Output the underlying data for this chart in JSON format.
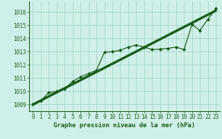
{
  "title": "Graphe pression niveau de la mer (hPa)",
  "bg_color": "#cff0e8",
  "grid_color": "#a8d8cc",
  "line_color": "#1a5c1a",
  "marker_color": "#1a5c1a",
  "xlim": [
    -0.5,
    23.5
  ],
  "ylim": [
    1008.5,
    1016.8
  ],
  "yticks": [
    1009,
    1010,
    1011,
    1012,
    1013,
    1014,
    1015,
    1016
  ],
  "xticks": [
    0,
    1,
    2,
    3,
    4,
    5,
    6,
    7,
    8,
    9,
    10,
    11,
    12,
    13,
    14,
    15,
    16,
    17,
    18,
    19,
    20,
    21,
    22,
    23
  ],
  "hourly_data": [
    1009.0,
    1009.3,
    1009.9,
    1010.0,
    1010.2,
    1010.75,
    1011.1,
    1011.35,
    1011.6,
    1012.95,
    1013.0,
    1013.1,
    1013.35,
    1013.5,
    1013.35,
    1013.15,
    1013.2,
    1013.25,
    1013.35,
    1013.15,
    1015.05,
    1014.6,
    1015.45,
    1016.25
  ],
  "trend_data_x": [
    0,
    23
  ],
  "trend_data_y": [
    1009.0,
    1016.1
  ],
  "title_fontsize": 6.5,
  "tick_fontsize": 5.5
}
